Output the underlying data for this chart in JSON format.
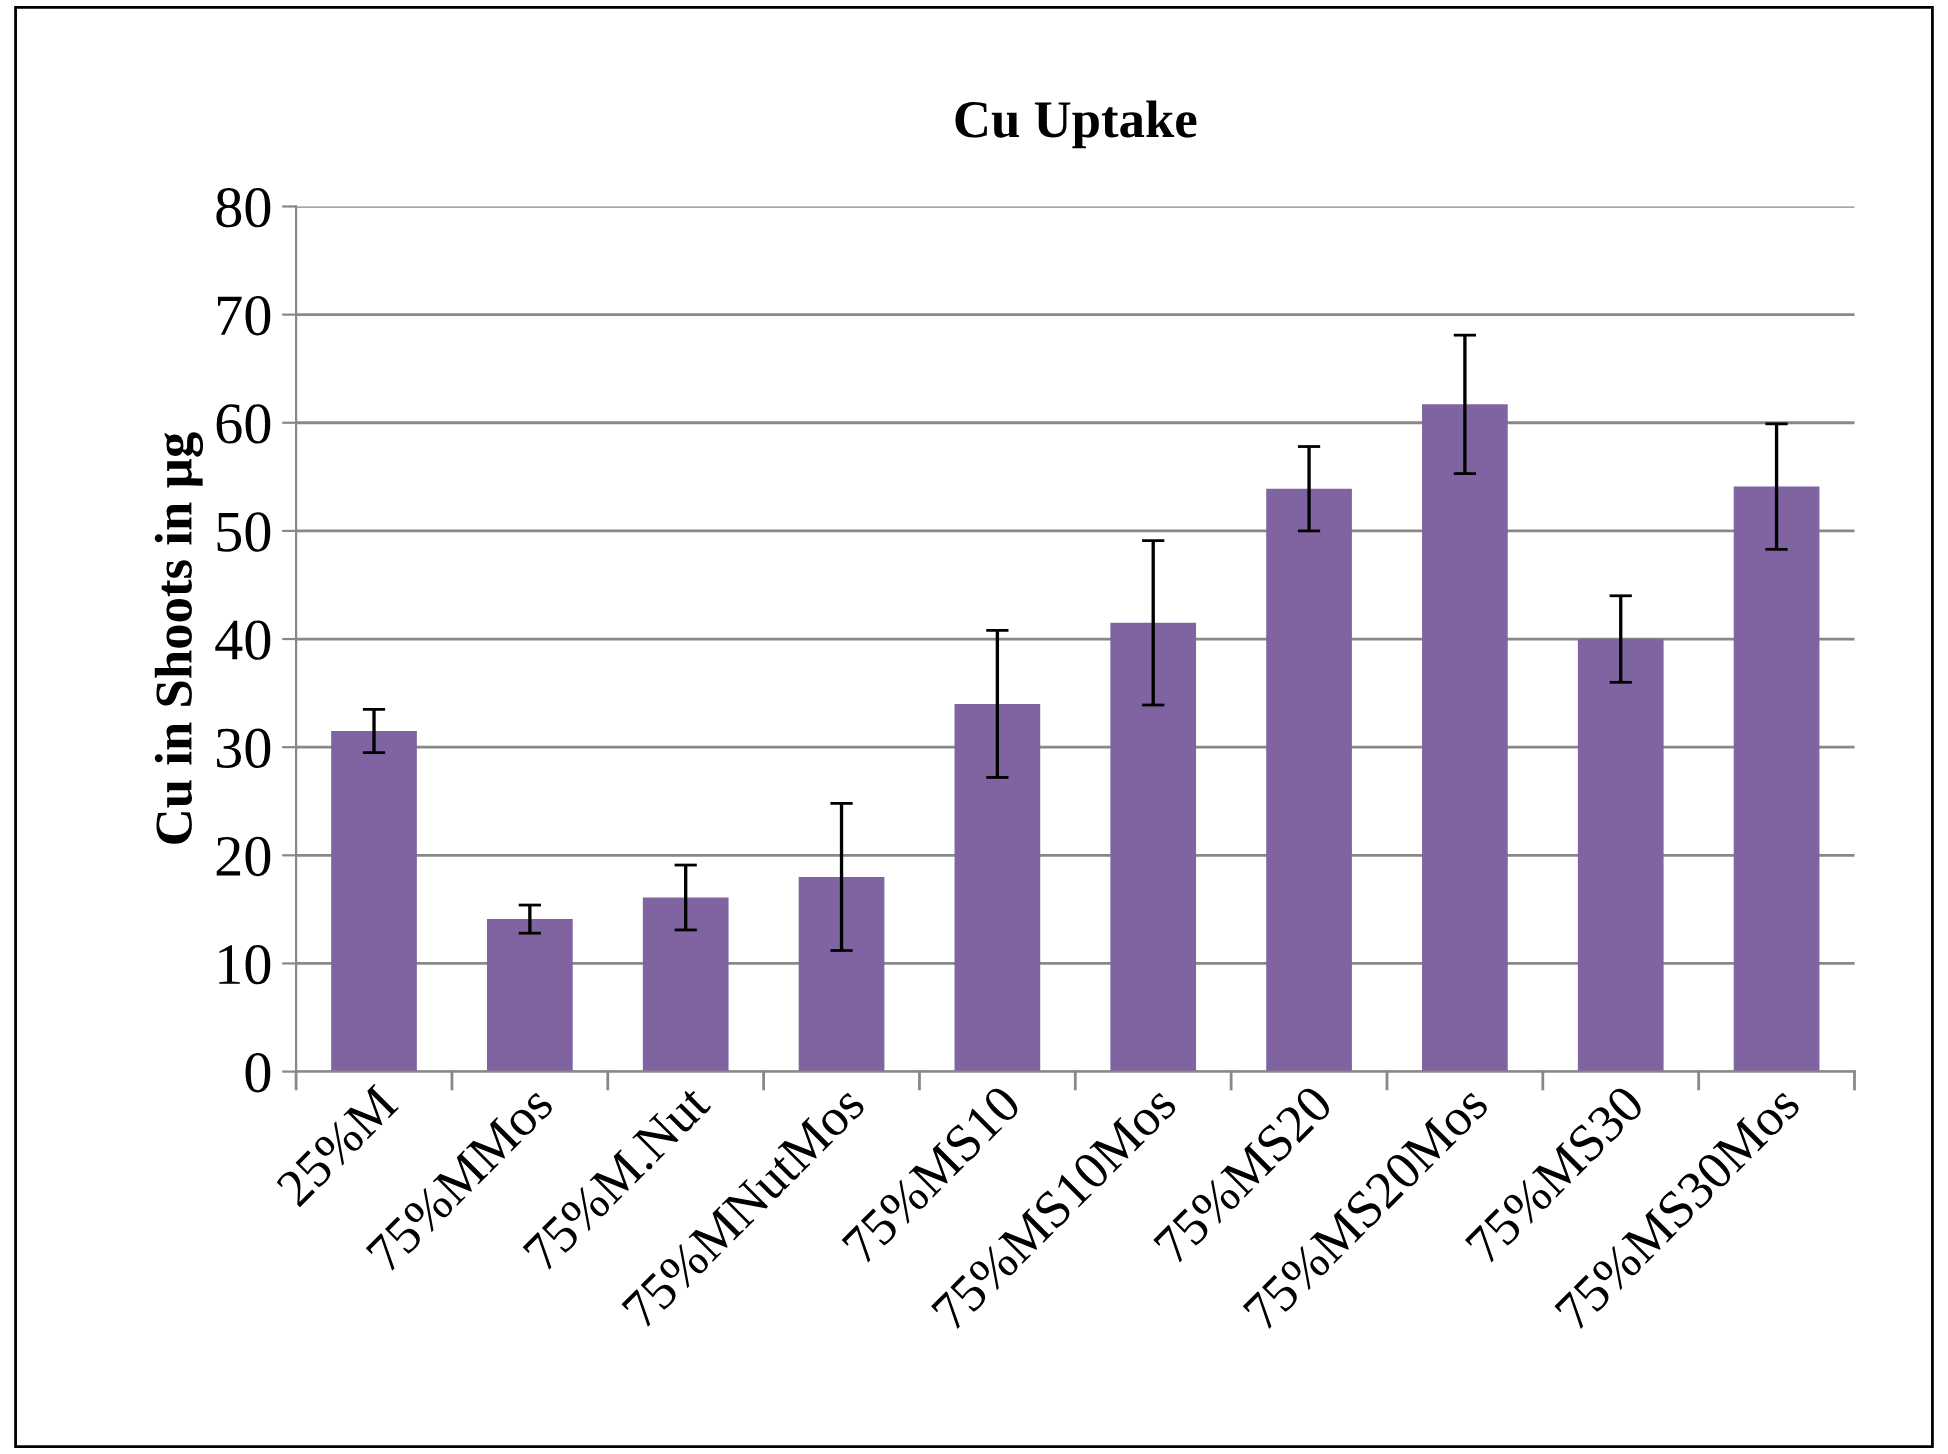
{
  "chart_data": {
    "type": "bar",
    "title": "Cu Uptake",
    "ylabel": "Cu in Shoots in µg",
    "categories": [
      "25%M",
      "75%MMos",
      "75%M.Nut",
      "75%MNutMos",
      "75%MS10",
      "75%MS10Mos",
      "75%MS20",
      "75%MS20Mos",
      "75%MS30",
      "75%MS30Mos"
    ],
    "values": [
      31.5,
      14.1,
      16.1,
      18,
      34,
      41.5,
      53.9,
      61.7,
      40,
      54.1
    ],
    "errors": [
      2,
      1.3,
      3,
      6.8,
      6.8,
      7.6,
      3.9,
      6.4,
      4,
      5.8
    ],
    "color": "#8064a2",
    "ylim": [
      0,
      80
    ],
    "yticks": [
      0,
      10,
      20,
      30,
      40,
      50,
      60,
      70,
      80
    ],
    "grid": "y",
    "legend": false
  }
}
